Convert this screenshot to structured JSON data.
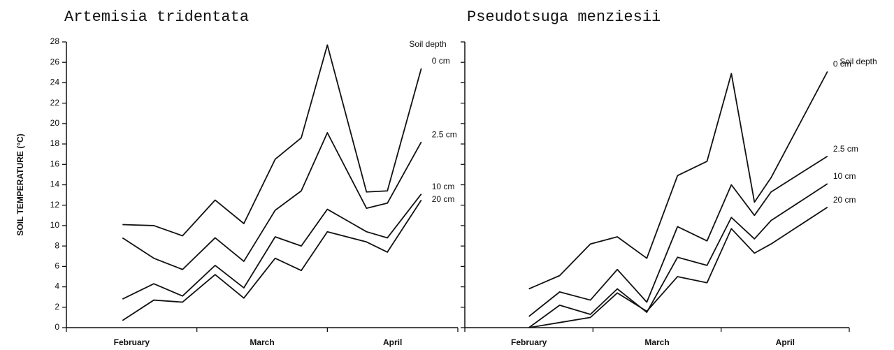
{
  "chart_data": [
    {
      "type": "line",
      "title": "Artemisia tridentata",
      "ylabel": "SOIL TEMPERATURE (°C)",
      "legend_title": "Soil depth",
      "month_labels": [
        "February",
        "March",
        "April"
      ],
      "x": [
        0.43,
        0.67,
        0.89,
        1.14,
        1.36,
        1.6,
        1.8,
        2.0,
        2.3,
        2.46,
        2.72
      ],
      "xlim": [
        0,
        3
      ],
      "xticks": [
        0,
        1,
        2,
        3
      ],
      "ylim": [
        0,
        28
      ],
      "yticks": [
        0,
        2,
        4,
        6,
        8,
        10,
        12,
        14,
        16,
        18,
        20,
        22,
        24,
        26,
        28
      ],
      "ytick_labels": true,
      "color": "#111111",
      "series": [
        {
          "name": "0 cm",
          "color": "#111111",
          "values": [
            10.1,
            10,
            9,
            12.5,
            10.2,
            16.5,
            18.6,
            27.7,
            13.3,
            13.4,
            25.4
          ]
        },
        {
          "name": "2.5 cm",
          "color": "#111111",
          "values": [
            8.8,
            6.8,
            5.7,
            8.8,
            6.5,
            11.5,
            13.4,
            19.1,
            11.7,
            12.2,
            18.2
          ]
        },
        {
          "name": "10 cm",
          "color": "#111111",
          "values": [
            2.8,
            4.3,
            3.1,
            6.1,
            3.9,
            8.9,
            8,
            11.6,
            9.4,
            8.8,
            13.1
          ]
        },
        {
          "name": "20 cm",
          "color": "#111111",
          "values": [
            0.7,
            2.7,
            2.5,
            5.2,
            2.9,
            6.8,
            5.6,
            9.4,
            8.4,
            7.4,
            12.5
          ]
        }
      ]
    },
    {
      "type": "line",
      "title": "Pseudotsuga menziesii",
      "legend_title": "Soil depth",
      "month_labels": [
        "February",
        "March",
        "April"
      ],
      "x": [
        0.5,
        0.74,
        0.98,
        1.19,
        1.42,
        1.66,
        1.89,
        2.08,
        2.26,
        2.39,
        2.83
      ],
      "xlim": [
        0,
        3
      ],
      "xticks": [
        0,
        1,
        2,
        3
      ],
      "ylim": [
        0,
        28
      ],
      "yticks": [
        0,
        2,
        4,
        6,
        8,
        10,
        12,
        14,
        16,
        18,
        20,
        22,
        24,
        26,
        28
      ],
      "ytick_labels": false,
      "color": "#111111",
      "series": [
        {
          "name": "0 cm",
          "color": "#111111",
          "values": [
            3.8,
            5.1,
            8.2,
            8.9,
            6.8,
            14.9,
            16.3,
            24.9,
            12.3,
            14.7,
            25.1
          ]
        },
        {
          "name": "2.5 cm",
          "color": "#111111",
          "values": [
            1.1,
            3.5,
            2.7,
            5.7,
            2.5,
            9.9,
            8.5,
            14,
            11,
            13.3,
            16.8
          ]
        },
        {
          "name": "10 cm",
          "color": "#111111",
          "values": [
            0,
            2.2,
            1.3,
            3.8,
            1.5,
            6.9,
            6.1,
            10.8,
            8.7,
            10.5,
            14.1
          ]
        },
        {
          "name": "20 cm",
          "color": "#111111",
          "values": [
            0,
            0.5,
            1,
            3.4,
            1.6,
            5,
            4.4,
            9.7,
            7.3,
            8.2,
            11.8
          ]
        }
      ]
    }
  ]
}
